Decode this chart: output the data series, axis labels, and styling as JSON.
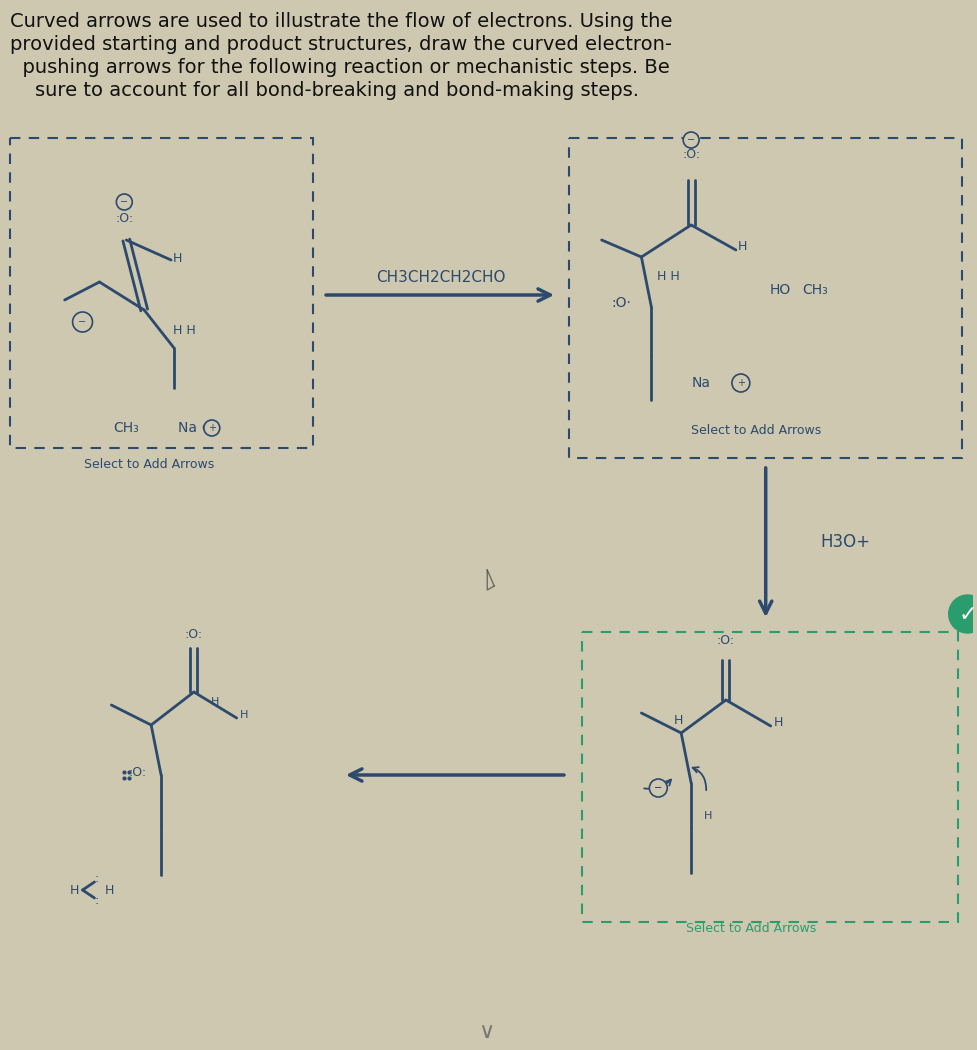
{
  "bg_color": "#cec8b0",
  "title_lines": [
    "Curved arrows are used to illustrate the flow of electrons. Using the",
    "provided starting and product structures, draw the curved electron-",
    "  pushing arrows for the following reaction or mechanistic steps. Be",
    "    sure to account for all bond-breaking and bond-making steps."
  ],
  "title_fontsize": 14,
  "title_color": "#111111",
  "box_color": "#2c4a6e",
  "arrow_color": "#2c4a6e",
  "text_color": "#2c4a6e",
  "select_text": "Select to Add Arrows",
  "h3o_text": "H3O+",
  "reagent_text": "CH3CH2CH2CHO",
  "green_box_color": "#2a9d6e",
  "check_color": "#2a9d6e"
}
